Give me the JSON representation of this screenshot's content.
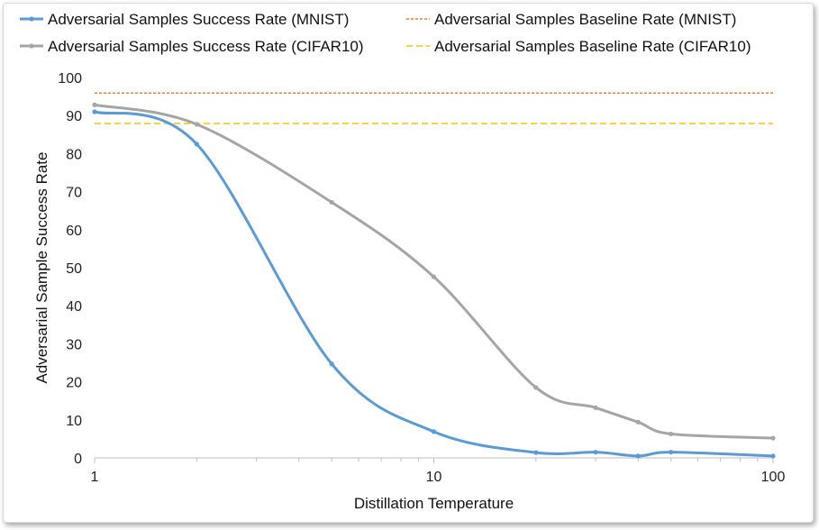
{
  "chart_data": {
    "type": "line",
    "title": "",
    "xlabel": "Distillation Temperature",
    "ylabel": "Adversarial Sample Success Rate",
    "xscale": "log",
    "xlim": [
      1,
      100
    ],
    "ylim": [
      0,
      100
    ],
    "x_ticks": [
      1,
      10,
      100
    ],
    "y_ticks": [
      0,
      10,
      20,
      30,
      40,
      50,
      60,
      70,
      80,
      90,
      100
    ],
    "grid": false,
    "legend_position": "top",
    "series": [
      {
        "name": "Adversarial Samples Success Rate (MNIST)",
        "color": "#5b9bd5",
        "style": "solid",
        "markers": true,
        "x": [
          1,
          2,
          5,
          10,
          20,
          30,
          40,
          50,
          100
        ],
        "y": [
          91,
          82.5,
          24.7,
          6.9,
          1.4,
          1.5,
          0.5,
          1.5,
          0.5
        ]
      },
      {
        "name": "Adversarial Samples Success Rate (CIFAR10)",
        "color": "#a5a5a5",
        "style": "solid",
        "markers": true,
        "x": [
          1,
          2,
          5,
          10,
          20,
          30,
          40,
          50,
          100
        ],
        "y": [
          92.8,
          87.7,
          67.2,
          47.6,
          18.5,
          13.2,
          9.4,
          6.3,
          5.2
        ]
      },
      {
        "name": "Adversarial Samples Baseline Rate (MNIST)",
        "color": "#ed7d31",
        "style": "dotted",
        "markers": false,
        "x": [
          1,
          100
        ],
        "y": [
          95.9,
          95.9
        ]
      },
      {
        "name": "Adversarial Samples Baseline Rate (CIFAR10)",
        "color": "#ffc000",
        "style": "dashed",
        "markers": false,
        "x": [
          1,
          100
        ],
        "y": [
          87.9,
          87.9
        ]
      }
    ]
  }
}
